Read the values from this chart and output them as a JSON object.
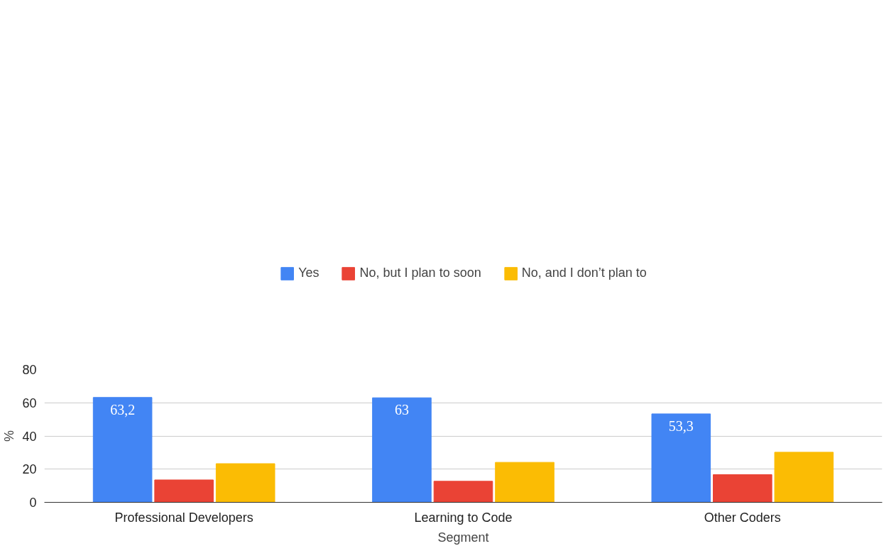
{
  "chart_data": {
    "type": "bar",
    "xlabel": "Segment",
    "ylabel": "%",
    "categories": [
      "Professional Developers",
      "Learning to Code",
      "Other Coders"
    ],
    "series": [
      {
        "name": "Yes",
        "color": "#4285f4",
        "values": [
          63.2,
          63,
          53.3
        ],
        "value_labels": [
          "63,2",
          "63",
          "53,3"
        ]
      },
      {
        "name": "No, but I plan to soon",
        "color": "#ea4335",
        "values": [
          13.5,
          12.7,
          16.7
        ]
      },
      {
        "name": "No, and I don’t plan to",
        "color": "#fbbc04",
        "values": [
          23.3,
          24.1,
          30.2
        ]
      }
    ],
    "ylim": [
      0,
      80
    ],
    "yticks": [
      0,
      20,
      40,
      60,
      80
    ],
    "grid": "y",
    "legend": "top"
  }
}
